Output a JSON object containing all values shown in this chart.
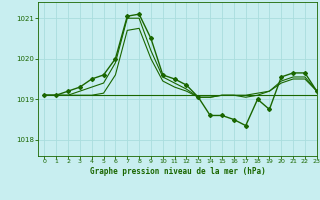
{
  "title": "Graphe pression niveau de la mer (hPa)",
  "background_color": "#c8eef0",
  "plot_bg_color": "#c8eef0",
  "grid_color": "#aadddd",
  "xlim": [
    -0.5,
    23
  ],
  "ylim": [
    1017.6,
    1021.4
  ],
  "yticks": [
    1018,
    1019,
    1020,
    1021
  ],
  "xticks": [
    0,
    1,
    2,
    3,
    4,
    5,
    6,
    7,
    8,
    9,
    10,
    11,
    12,
    13,
    14,
    15,
    16,
    17,
    18,
    19,
    20,
    21,
    22,
    23
  ],
  "line_main_x": [
    0,
    1,
    2,
    3,
    4,
    5,
    6,
    7,
    8,
    9,
    10,
    11,
    12,
    13,
    14,
    15,
    16,
    17,
    18,
    19,
    20,
    21,
    22,
    23
  ],
  "line_main_y": [
    1019.1,
    1019.1,
    1019.2,
    1019.3,
    1019.5,
    1019.6,
    1020.0,
    1021.05,
    1021.1,
    1020.5,
    1019.6,
    1019.5,
    1019.35,
    1019.05,
    1018.6,
    1018.6,
    1018.5,
    1018.35,
    1019.0,
    1018.75,
    1019.55,
    1019.65,
    1019.65,
    1019.2
  ],
  "line2_x": [
    0,
    1,
    2,
    3,
    4,
    5,
    6,
    7,
    8,
    9,
    10,
    11,
    12,
    13,
    14,
    15,
    16,
    17,
    18,
    19,
    20,
    21,
    22,
    23
  ],
  "line2_y": [
    1019.1,
    1019.1,
    1019.1,
    1019.2,
    1019.3,
    1019.4,
    1019.9,
    1021.0,
    1021.0,
    1020.2,
    1019.55,
    1019.4,
    1019.25,
    1019.05,
    1019.05,
    1019.1,
    1019.1,
    1019.1,
    1019.15,
    1019.2,
    1019.45,
    1019.55,
    1019.55,
    1019.2
  ],
  "line3_x": [
    0,
    1,
    2,
    3,
    4,
    5,
    6,
    7,
    8,
    9,
    10,
    11,
    12,
    13,
    14,
    15,
    16,
    17,
    18,
    19,
    20,
    21,
    22,
    23
  ],
  "line3_y": [
    1019.1,
    1019.1,
    1019.1,
    1019.1,
    1019.1,
    1019.15,
    1019.6,
    1020.7,
    1020.75,
    1020.0,
    1019.45,
    1019.3,
    1019.2,
    1019.05,
    1019.05,
    1019.1,
    1019.1,
    1019.05,
    1019.1,
    1019.2,
    1019.4,
    1019.5,
    1019.5,
    1019.2
  ],
  "line_flat_x": [
    0,
    1,
    2,
    3,
    4,
    5,
    6,
    7,
    8,
    9,
    10,
    11,
    12,
    13,
    14,
    15,
    16,
    17,
    18,
    19,
    20,
    21,
    22,
    23
  ],
  "line_flat_y": [
    1019.1,
    1019.1,
    1019.1,
    1019.1,
    1019.1,
    1019.1,
    1019.1,
    1019.1,
    1019.1,
    1019.1,
    1019.1,
    1019.1,
    1019.1,
    1019.1,
    1019.1,
    1019.1,
    1019.1,
    1019.1,
    1019.1,
    1019.1,
    1019.1,
    1019.1,
    1019.1,
    1019.1
  ],
  "marker_x": [
    0,
    1,
    2,
    3,
    4,
    5,
    6,
    7,
    8,
    9,
    10,
    11,
    12,
    13,
    14,
    15,
    16,
    17,
    18,
    19,
    20,
    21,
    22,
    23
  ],
  "marker_y": [
    1019.1,
    1019.1,
    1019.2,
    1019.3,
    1019.5,
    1019.6,
    1020.0,
    1021.05,
    1021.1,
    1020.5,
    1019.6,
    1019.5,
    1019.35,
    1019.05,
    1018.6,
    1018.6,
    1018.5,
    1018.35,
    1019.0,
    1018.75,
    1019.55,
    1019.65,
    1019.65,
    1019.2
  ],
  "line_color_dark": "#1a6600",
  "line_color_med": "#2a7700",
  "line_color_bright": "#3a9900",
  "tick_color": "#1a6600",
  "title_color": "#1a6600",
  "axis_color": "#1a6600"
}
